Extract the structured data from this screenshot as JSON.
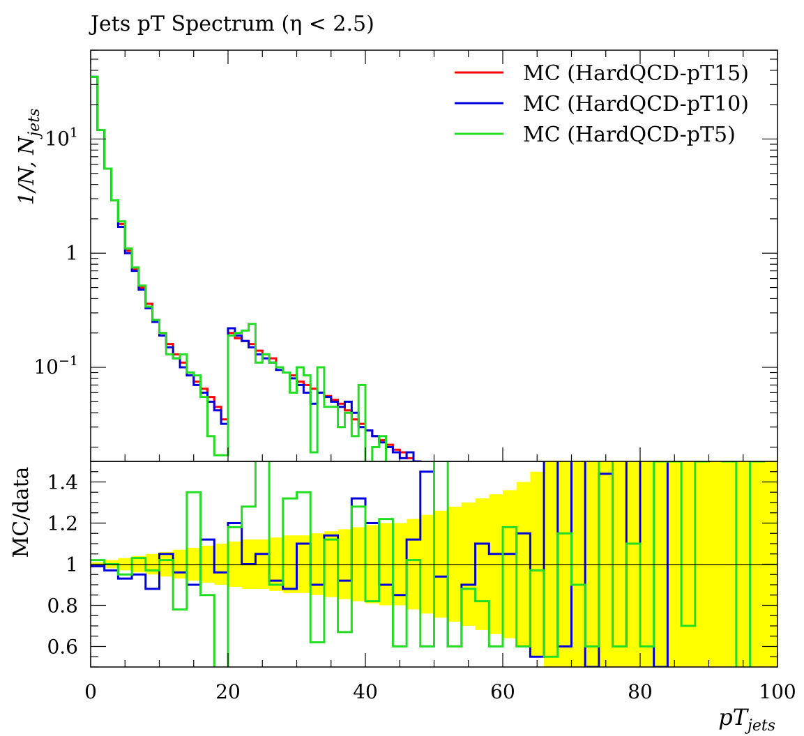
{
  "title": "Jets pT Spectrum (η < 2.5)",
  "colors": {
    "ref_band": "#ffff00",
    "pT15": "#ff0000",
    "pT10": "#0000dd",
    "pT5": "#22dd22",
    "axis": "#000000"
  },
  "chart_data": [
    {
      "type": "line",
      "panel": "main",
      "style": "step-histogram",
      "title": "Jets pT Spectrum (η < 2.5)",
      "ylabel": "1/N, N_jets",
      "yscale": "log",
      "ylim": [
        0.015,
        60
      ],
      "xlim": [
        0,
        100
      ],
      "y_tick_labels": [
        "10^{-1}",
        "1",
        "10^{1}"
      ],
      "legend_position": "top-right",
      "bin_edges": [
        0,
        1,
        2,
        3,
        4,
        5,
        6,
        7,
        8,
        9,
        10,
        11,
        12,
        13,
        14,
        15,
        16,
        17,
        18,
        19,
        20,
        21,
        22,
        23,
        24,
        25,
        26,
        27,
        28,
        29,
        30,
        31,
        32,
        33,
        34,
        35,
        36,
        37,
        38,
        39,
        40,
        41,
        42,
        43,
        44,
        45,
        46,
        47,
        48,
        49,
        50
      ],
      "series": [
        {
          "name": "MC (HardQCD-pT15)",
          "color": "#ff0000",
          "values": [
            35,
            12,
            5.5,
            2.9,
            1.8,
            1.05,
            0.72,
            0.5,
            0.36,
            0.26,
            0.2,
            0.16,
            0.13,
            0.11,
            0.09,
            0.075,
            0.065,
            0.055,
            0.045,
            0.035,
            0.2,
            0.18,
            0.17,
            0.16,
            0.14,
            0.13,
            0.12,
            0.1,
            0.09,
            0.085,
            0.075,
            0.07,
            0.065,
            0.06,
            0.056,
            0.052,
            0.048,
            0.042,
            0.035,
            0.032,
            0.028,
            0.025,
            0.023,
            0.021,
            0.019,
            0.018,
            0.016,
            0.015,
            0.013,
            0.012
          ]
        },
        {
          "name": "MC (HardQCD-pT10)",
          "color": "#0000dd",
          "values": [
            35,
            12,
            5.5,
            2.9,
            1.7,
            1.0,
            0.7,
            0.48,
            0.33,
            0.25,
            0.19,
            0.15,
            0.12,
            0.1,
            0.085,
            0.07,
            0.06,
            0.05,
            0.042,
            0.032,
            0.22,
            0.19,
            0.17,
            0.15,
            0.13,
            0.12,
            0.11,
            0.095,
            0.09,
            0.08,
            0.07,
            0.06,
            0.048,
            0.06,
            0.055,
            0.05,
            0.045,
            0.05,
            0.04,
            0.03,
            0.028,
            0.025,
            0.022,
            0.02,
            0.018,
            0.016,
            0.018,
            0.015,
            0.012,
            0.013
          ]
        },
        {
          "name": "MC (HardQCD-pT5)",
          "color": "#22dd22",
          "values": [
            35,
            12,
            5.5,
            2.9,
            1.9,
            1.1,
            0.75,
            0.52,
            0.34,
            0.26,
            0.2,
            0.13,
            0.12,
            0.13,
            0.09,
            0.085,
            0.055,
            0.025,
            0.017,
            0.017,
            0.19,
            0.2,
            0.21,
            0.24,
            0.11,
            0.13,
            0.11,
            0.1,
            0.09,
            0.06,
            0.1,
            0.085,
            0.018,
            0.1,
            0.045,
            0.045,
            0.03,
            0.04,
            0.025,
            0.07,
            0.01,
            0.02,
            0.025,
            0.01,
            0.01,
            0.01,
            0.01,
            0.01,
            0.01,
            0.01
          ]
        }
      ]
    },
    {
      "type": "line",
      "panel": "ratio",
      "style": "step-histogram",
      "ylabel": "MC/data",
      "xlabel": "pT_jets",
      "ylim": [
        0.5,
        1.5
      ],
      "xlim": [
        0,
        100
      ],
      "y_ticks": [
        0.6,
        0.8,
        1,
        1.2,
        1.4
      ],
      "y_tick_labels": [
        "0.6",
        "0.8",
        "1",
        "1.2",
        "1.4"
      ],
      "x_ticks": [
        0,
        20,
        40,
        60,
        80,
        100
      ],
      "x_tick_labels": [
        "0",
        "20",
        "40",
        "60",
        "80",
        "100"
      ],
      "reference_line": 1,
      "bin_edges": [
        0,
        2,
        4,
        6,
        8,
        10,
        12,
        14,
        16,
        18,
        20,
        22,
        24,
        26,
        28,
        30,
        32,
        34,
        36,
        38,
        40,
        42,
        44,
        46,
        48,
        50,
        52,
        54,
        56,
        58,
        60,
        62,
        64,
        66,
        68,
        70,
        72,
        74,
        76,
        78,
        80,
        82,
        84,
        86,
        88,
        90,
        92,
        94,
        96,
        98,
        100
      ],
      "band": {
        "color": "#ffff00",
        "halfwidth": [
          0.01,
          0.02,
          0.03,
          0.04,
          0.05,
          0.06,
          0.07,
          0.08,
          0.09,
          0.1,
          0.11,
          0.12,
          0.12,
          0.13,
          0.14,
          0.14,
          0.15,
          0.16,
          0.17,
          0.18,
          0.19,
          0.2,
          0.2,
          0.22,
          0.24,
          0.26,
          0.28,
          0.3,
          0.32,
          0.34,
          0.36,
          0.4,
          0.45,
          0.5,
          0.6,
          0.7,
          0.8,
          0.9,
          1,
          1,
          1,
          1,
          1,
          1,
          1,
          1,
          1,
          1,
          1,
          1
        ]
      },
      "series": [
        {
          "name": "MC (HardQCD-pT15)",
          "color": "#ff0000",
          "values": []
        },
        {
          "name": "MC (HardQCD-pT10)",
          "color": "#0000dd",
          "values": [
            0.99,
            0.97,
            0.93,
            0.95,
            0.88,
            1.05,
            0.96,
            0.9,
            1.12,
            0.96,
            1.2,
            1.0,
            1.05,
            0.92,
            0.88,
            1.1,
            0.9,
            1.14,
            0.92,
            1.32,
            1.2,
            0.9,
            0.85,
            1.12,
            1.45,
            0.94,
            0.6,
            0.9,
            1.1,
            1.05,
            1.05,
            1.15,
            0.55,
            1.8,
            0.6,
            1.7,
            0.5,
            1.44,
            0.6,
            1.8,
            0.6,
            0.5,
            1.8,
            1.6,
            1.5,
            1.6,
            1.5,
            1.6,
            1.5,
            1.6
          ]
        },
        {
          "name": "MC (HardQCD-pT5)",
          "color": "#22dd22",
          "values": [
            1.02,
            1.0,
            0.95,
            1.03,
            0.97,
            1.02,
            0.78,
            1.35,
            0.85,
            0.4,
            1.18,
            1.28,
            1.6,
            0.9,
            1.32,
            1.35,
            0.62,
            1.12,
            0.67,
            1.28,
            0.82,
            1.22,
            0.6,
            1.02,
            0.6,
            1.55,
            0.6,
            0.88,
            0.82,
            0.6,
            1.18,
            0.6,
            0.97,
            0.55,
            1.15,
            0.9,
            0.6,
            1.6,
            0.6,
            1.1,
            0.6,
            1.5,
            1.5,
            0.7,
            1.5,
            1.6,
            1.5,
            0.4,
            1.5,
            1.6
          ]
        }
      ]
    }
  ],
  "labels": {
    "main_ylabel_lead": "1/N, N",
    "main_ylabel_sub": "jets",
    "ratio_ylabel": "MC/data",
    "xlabel_lead": "pT",
    "xlabel_sub": "jets",
    "ytick_10": "10",
    "ytick_10_exp_pos": "1",
    "ytick_10_exp_neg": "−1",
    "ytick_1": "1"
  }
}
